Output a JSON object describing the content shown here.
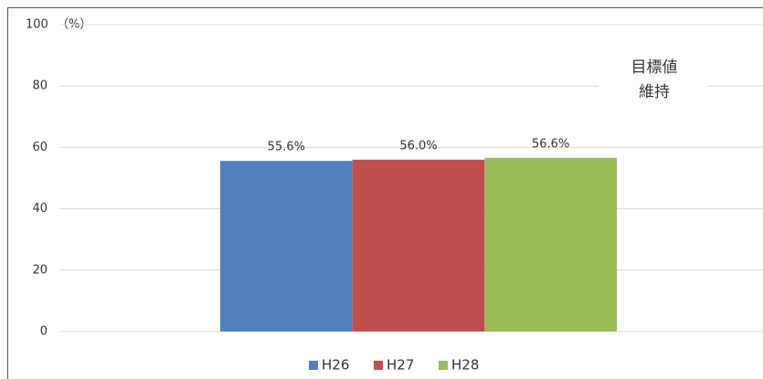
{
  "chart_data": {
    "type": "bar",
    "y_label": "（%）",
    "annotation": [
      "目標値",
      "維持"
    ],
    "categories": [
      null
    ],
    "series": [
      {
        "name": "H26",
        "color": "#4f81bd",
        "values": [
          55.6
        ],
        "value_labels": [
          "55.6%"
        ]
      },
      {
        "name": "H27",
        "color": "#c0504d",
        "values": [
          56.0
        ],
        "value_labels": [
          "56.0%"
        ]
      },
      {
        "name": "H28",
        "color": "#9bbb59",
        "values": [
          56.6
        ],
        "value_labels": [
          "56.6%"
        ]
      }
    ],
    "ylim": [
      0,
      100
    ],
    "yticks": [
      0,
      20,
      40,
      60,
      80,
      100
    ],
    "grid": true,
    "legend": "bottom"
  }
}
